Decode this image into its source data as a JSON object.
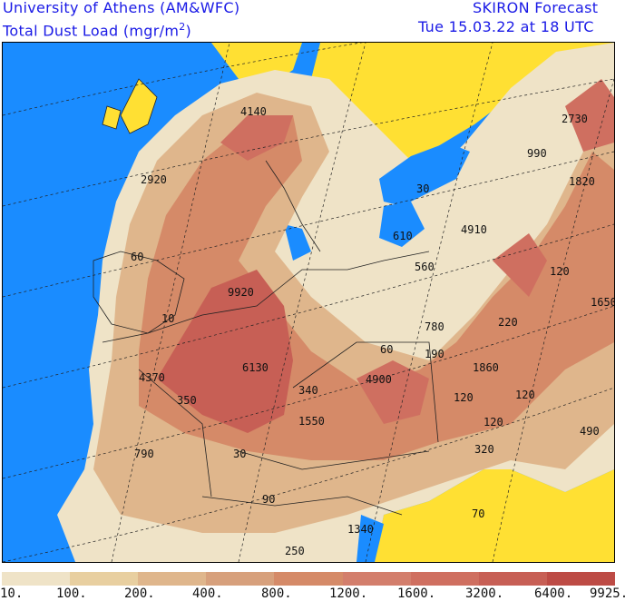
{
  "header": {
    "institution": "University of Athens (AM&WFC)",
    "variable": "Total Dust Load (mgr/m",
    "variable_sup": "2",
    "variable_end": ")",
    "model": "SKIRON Forecast",
    "valid_time": "Tue 15.03.22 at 18 UTC"
  },
  "colors": {
    "sea": "#1a8cff",
    "clean_land": "#ffe033",
    "text_blue": "#1a1ae6"
  },
  "legend": {
    "colors": [
      "#efe3c7",
      "#e8cfa0",
      "#dfb68c",
      "#d7a07c",
      "#d58a68",
      "#d37e6c",
      "#cf6f60",
      "#c75f55",
      "#bd4b45"
    ],
    "ticks": [
      "10.",
      "100.",
      "200.",
      "400.",
      "800.",
      "1200.",
      "1600.",
      "3200.",
      "6400.",
      "9925."
    ]
  },
  "labels": [
    {
      "text": "4140"
    },
    {
      "text": "2730"
    },
    {
      "text": "990"
    },
    {
      "text": "2920"
    },
    {
      "text": "1820"
    },
    {
      "text": "30"
    },
    {
      "text": "610"
    },
    {
      "text": "4910"
    },
    {
      "text": "60"
    },
    {
      "text": "560"
    },
    {
      "text": "120"
    },
    {
      "text": "9920"
    },
    {
      "text": "1650"
    },
    {
      "text": "10"
    },
    {
      "text": "780"
    },
    {
      "text": "220"
    },
    {
      "text": "60"
    },
    {
      "text": "190"
    },
    {
      "text": "1860"
    },
    {
      "text": "4370"
    },
    {
      "text": "6130"
    },
    {
      "text": "4900"
    },
    {
      "text": "350"
    },
    {
      "text": "340"
    },
    {
      "text": "120"
    },
    {
      "text": "120"
    },
    {
      "text": "1550"
    },
    {
      "text": "120"
    },
    {
      "text": "490"
    },
    {
      "text": "790"
    },
    {
      "text": "320"
    },
    {
      "text": "30"
    },
    {
      "text": "90"
    },
    {
      "text": "70"
    },
    {
      "text": "1340"
    },
    {
      "text": "250"
    }
  ]
}
